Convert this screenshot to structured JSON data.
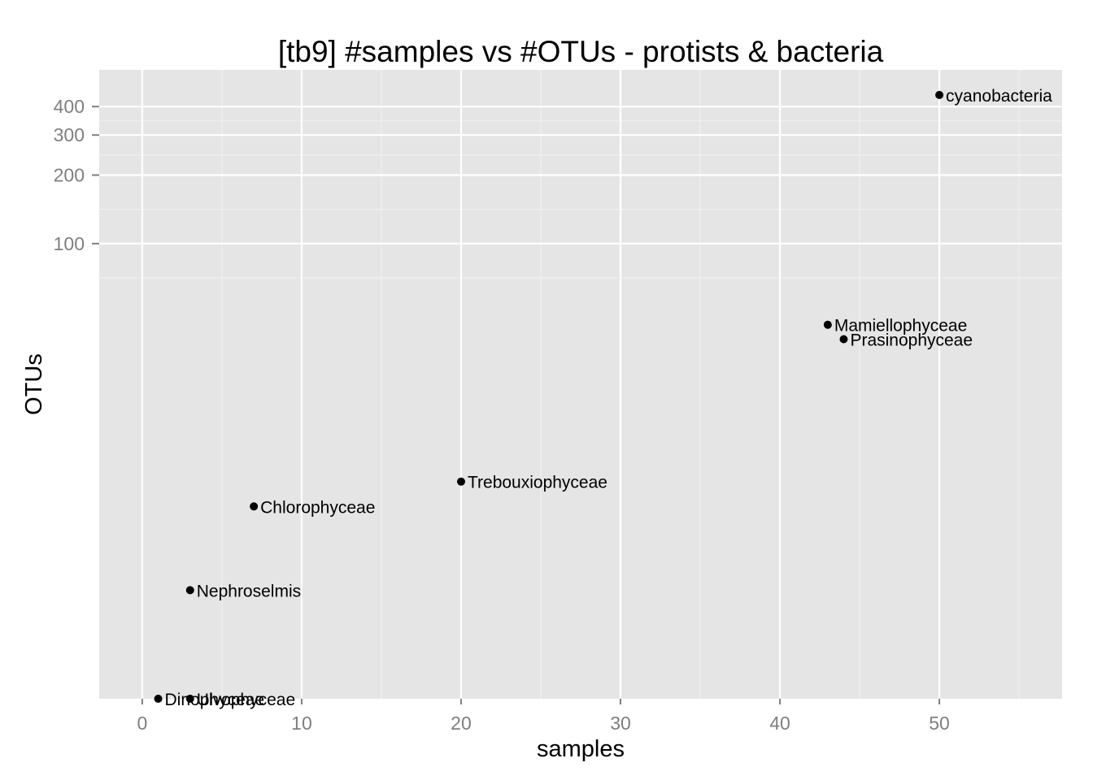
{
  "chart_data": {
    "type": "scatter",
    "title": "[tb9] #samples vs #OTUs - protists & bacteria",
    "xlabel": "samples",
    "ylabel": "OTUs",
    "x_scale": "linear",
    "y_scale": "log10",
    "xlim": [
      -2.7,
      57.7
    ],
    "ylim": [
      1.0,
      580
    ],
    "x_ticks": [
      0,
      10,
      20,
      30,
      40,
      50
    ],
    "x_tick_labels": [
      "0",
      "10",
      "20",
      "30",
      "40",
      "50"
    ],
    "y_ticks": [
      100,
      200,
      300,
      400
    ],
    "y_tick_labels": [
      "100",
      "200",
      "300",
      "400"
    ],
    "grid": true,
    "legend": "none",
    "points": [
      {
        "label": "cyanobacteria",
        "x": 50,
        "y": 450
      },
      {
        "label": "Mamiellophyceae",
        "x": 43,
        "y": 44
      },
      {
        "label": "Prasinophyceae",
        "x": 44,
        "y": 38
      },
      {
        "label": "Trebouxiophyceae",
        "x": 20,
        "y": 9
      },
      {
        "label": "Chlorophyceae",
        "x": 7,
        "y": 7
      },
      {
        "label": "Nephroselmis",
        "x": 3,
        "y": 3
      },
      {
        "label": "Dinophyceae",
        "x": 1,
        "y": 1
      },
      {
        "label": "Ulvophyceae",
        "x": 3,
        "y": 1
      }
    ]
  },
  "colors": {
    "panel_background": "#e5e5e5",
    "grid_major": "#ffffff",
    "grid_minor": "#f2f2f2",
    "point": "#000000",
    "tick_text": "#7f7f7f"
  }
}
